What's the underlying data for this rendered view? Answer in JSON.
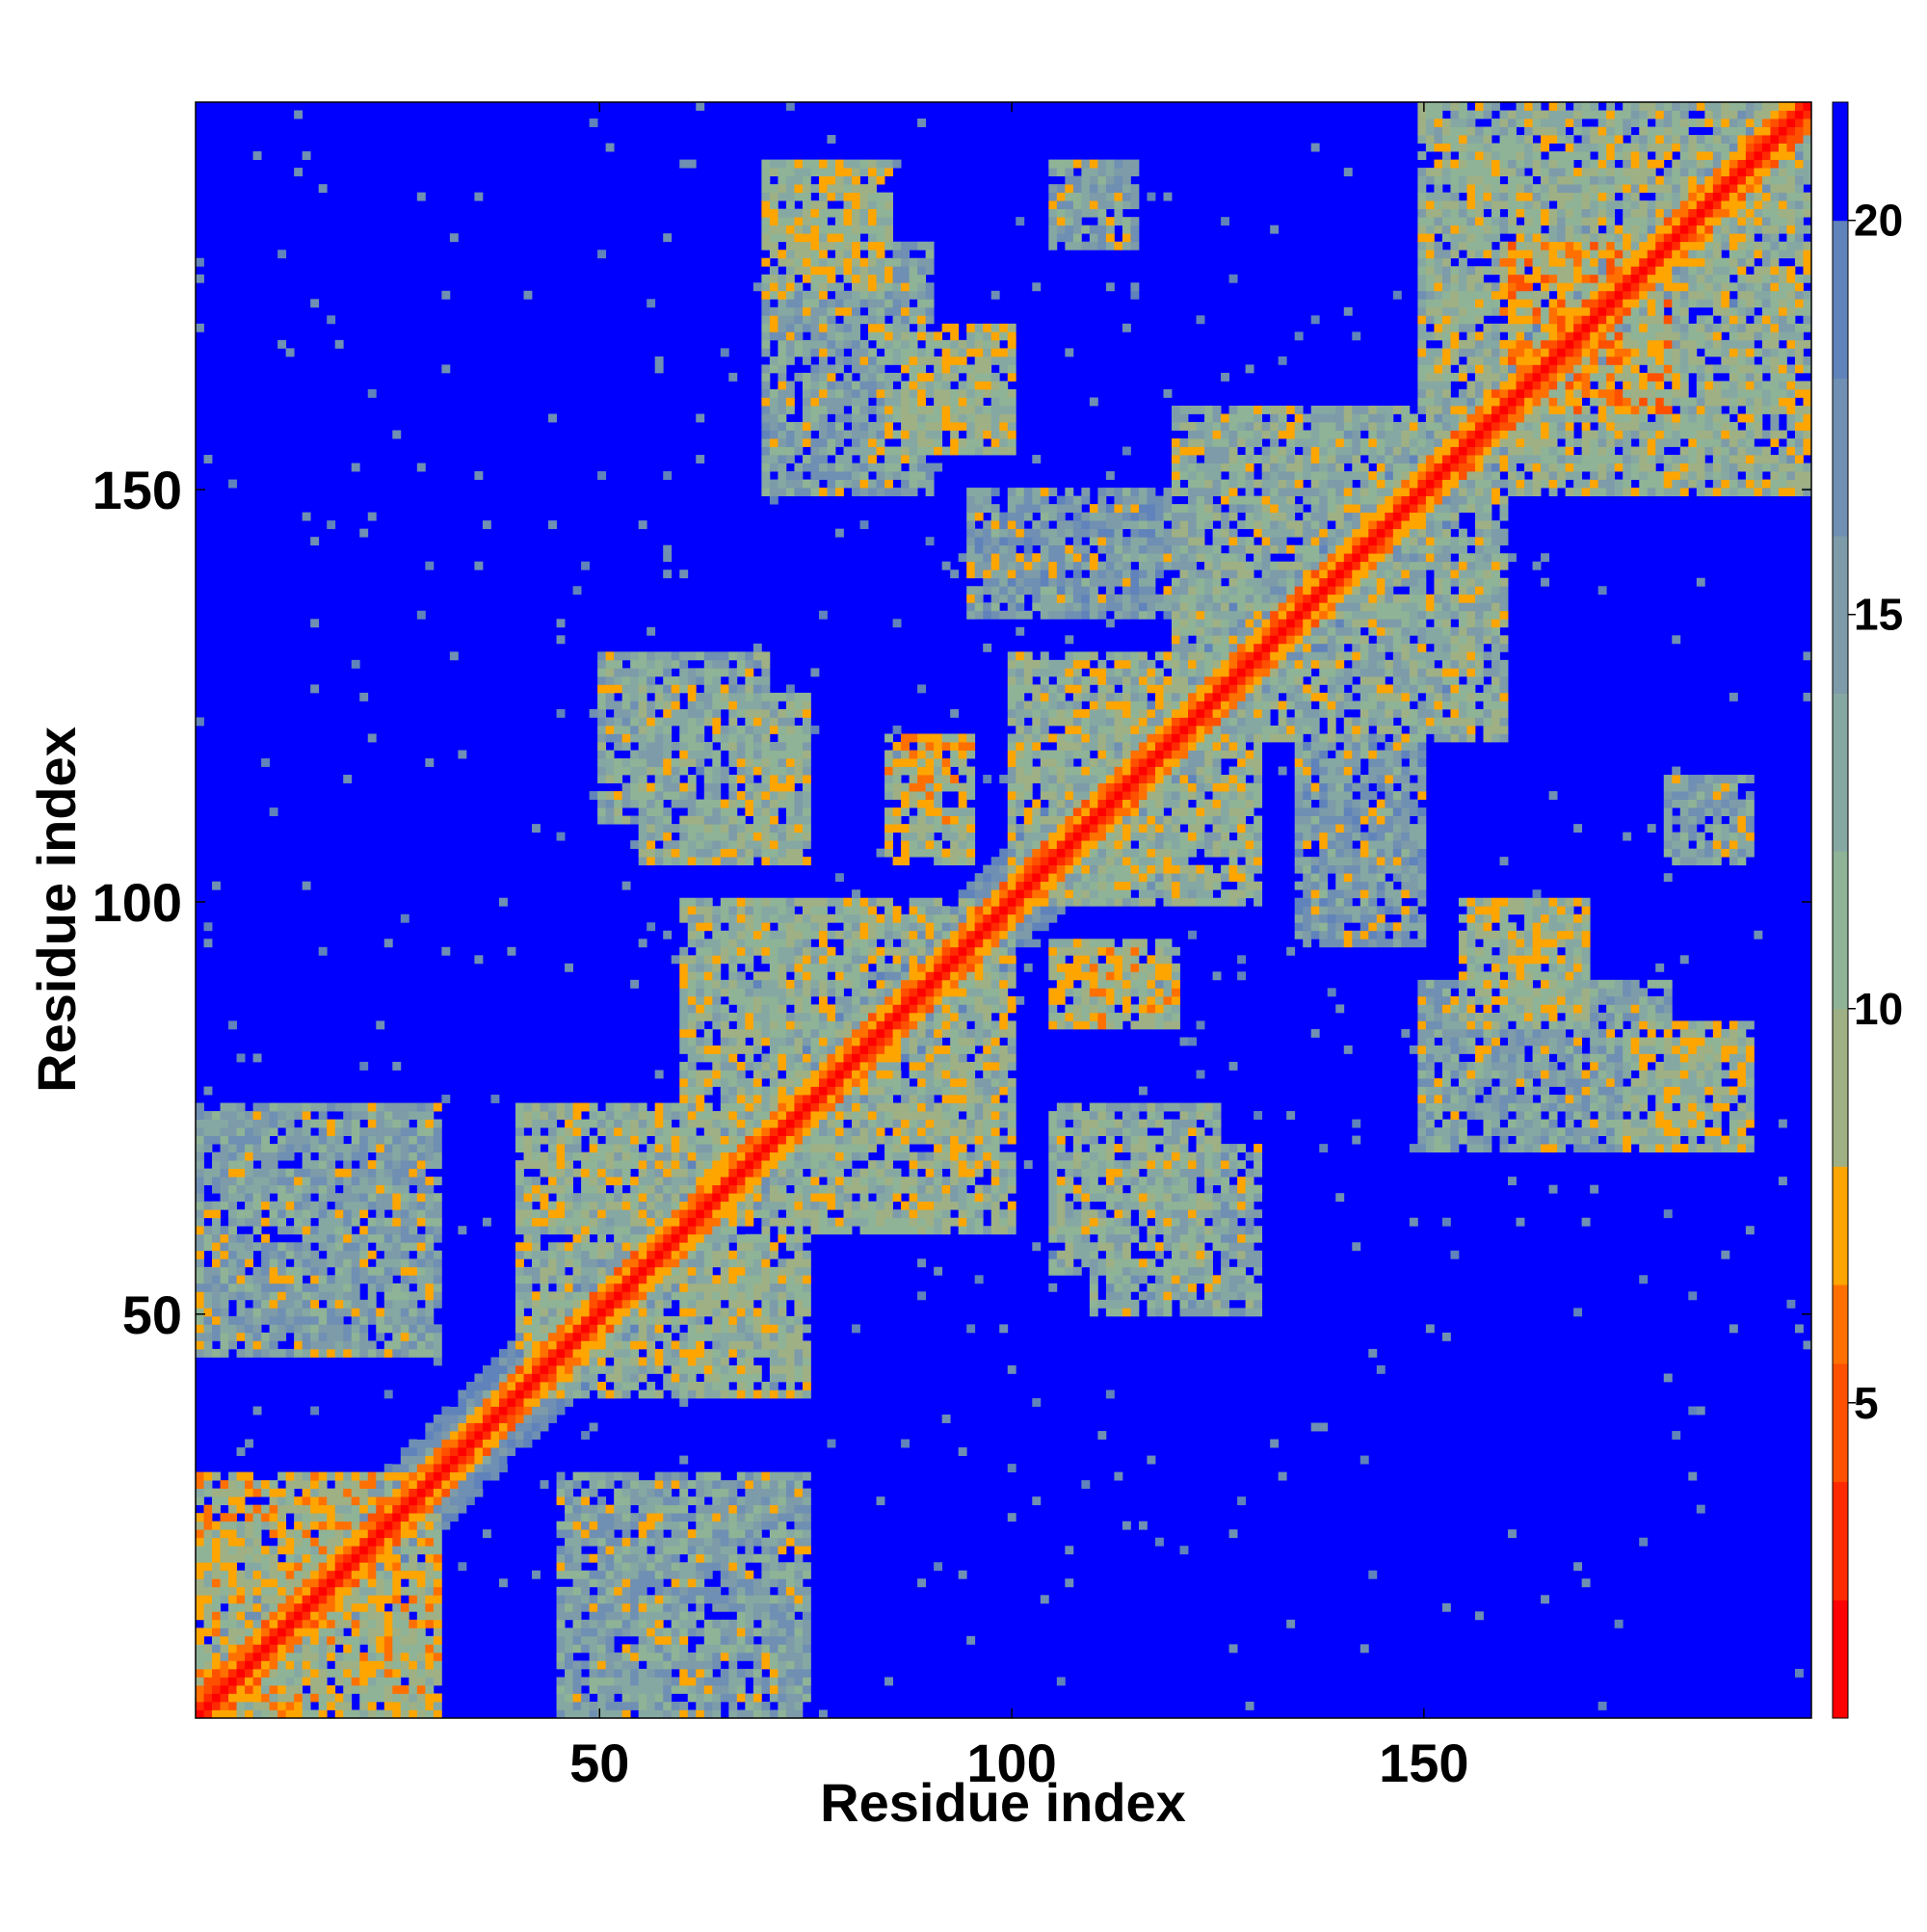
{
  "chart_data": {
    "type": "heatmap",
    "title": "",
    "xlabel": "Residue index",
    "ylabel": "Residue index",
    "n_residues": 197,
    "xlim": [
      1,
      197
    ],
    "ylim": [
      1,
      197
    ],
    "x_ticks": [
      50,
      100,
      150
    ],
    "y_ticks": [
      50,
      100,
      150
    ],
    "colorbar": {
      "ticks": [
        5,
        10,
        15,
        20
      ],
      "range": [
        1,
        21.5
      ],
      "levels": [
        {
          "max": 2.5,
          "color": "#ff0000"
        },
        {
          "max": 4.0,
          "color": "#ff2a00"
        },
        {
          "max": 5.5,
          "color": "#ff5000"
        },
        {
          "max": 6.5,
          "color": "#ff7000"
        },
        {
          "max": 8.0,
          "color": "#ffa500"
        },
        {
          "max": 10.0,
          "color": "#9fb084"
        },
        {
          "max": 12.0,
          "color": "#8fb396"
        },
        {
          "max": 14.0,
          "color": "#86a8a3"
        },
        {
          "max": 16.0,
          "color": "#7d9ba9"
        },
        {
          "max": 18.0,
          "color": "#6f8fb3"
        },
        {
          "max": 20.0,
          "color": "#5f83ba"
        },
        {
          "max": 21.5,
          "color": "#0000ff"
        }
      ]
    },
    "description_values": {
      "diagonal_distance": 1.5,
      "background_distance": 21.5
    },
    "contact_bands": [
      {
        "a": [
          1,
          30
        ],
        "b": [
          1,
          30
        ],
        "d": 9
      },
      {
        "a": [
          1,
          30
        ],
        "b": [
          45,
          75
        ],
        "d": 14
      },
      {
        "a": [
          40,
          75
        ],
        "b": [
          40,
          75
        ],
        "d": 11
      },
      {
        "a": [
          50,
          70
        ],
        "b": [
          110,
          130
        ],
        "d": 13
      },
      {
        "a": [
          60,
          100
        ],
        "b": [
          60,
          100
        ],
        "d": 11
      },
      {
        "a": [
          70,
          90
        ],
        "b": [
          150,
          180
        ],
        "d": 14
      },
      {
        "a": [
          85,
          95
        ],
        "b": [
          105,
          120
        ],
        "d": 10
      },
      {
        "a": [
          100,
          130
        ],
        "b": [
          100,
          130
        ],
        "d": 11
      },
      {
        "a": [
          105,
          125
        ],
        "b": [
          55,
          75
        ],
        "d": 12
      },
      {
        "a": [
          110,
          120
        ],
        "b": [
          85,
          95
        ],
        "d": 9
      },
      {
        "a": [
          120,
          160
        ],
        "b": [
          120,
          160
        ],
        "d": 12
      },
      {
        "a": [
          135,
          150
        ],
        "b": [
          95,
          120
        ],
        "d": 15
      },
      {
        "a": [
          155,
          170
        ],
        "b": [
          85,
          100
        ],
        "d": 10
      },
      {
        "a": [
          150,
          197
        ],
        "b": [
          150,
          197
        ],
        "d": 11
      },
      {
        "a": [
          175,
          190
        ],
        "b": [
          70,
          85
        ],
        "d": 10
      },
      {
        "a": [
          180,
          190
        ],
        "b": [
          105,
          115
        ],
        "d": 14
      },
      {
        "a": [
          165,
          180
        ],
        "b": [
          160,
          175
        ],
        "d": 8
      }
    ]
  }
}
